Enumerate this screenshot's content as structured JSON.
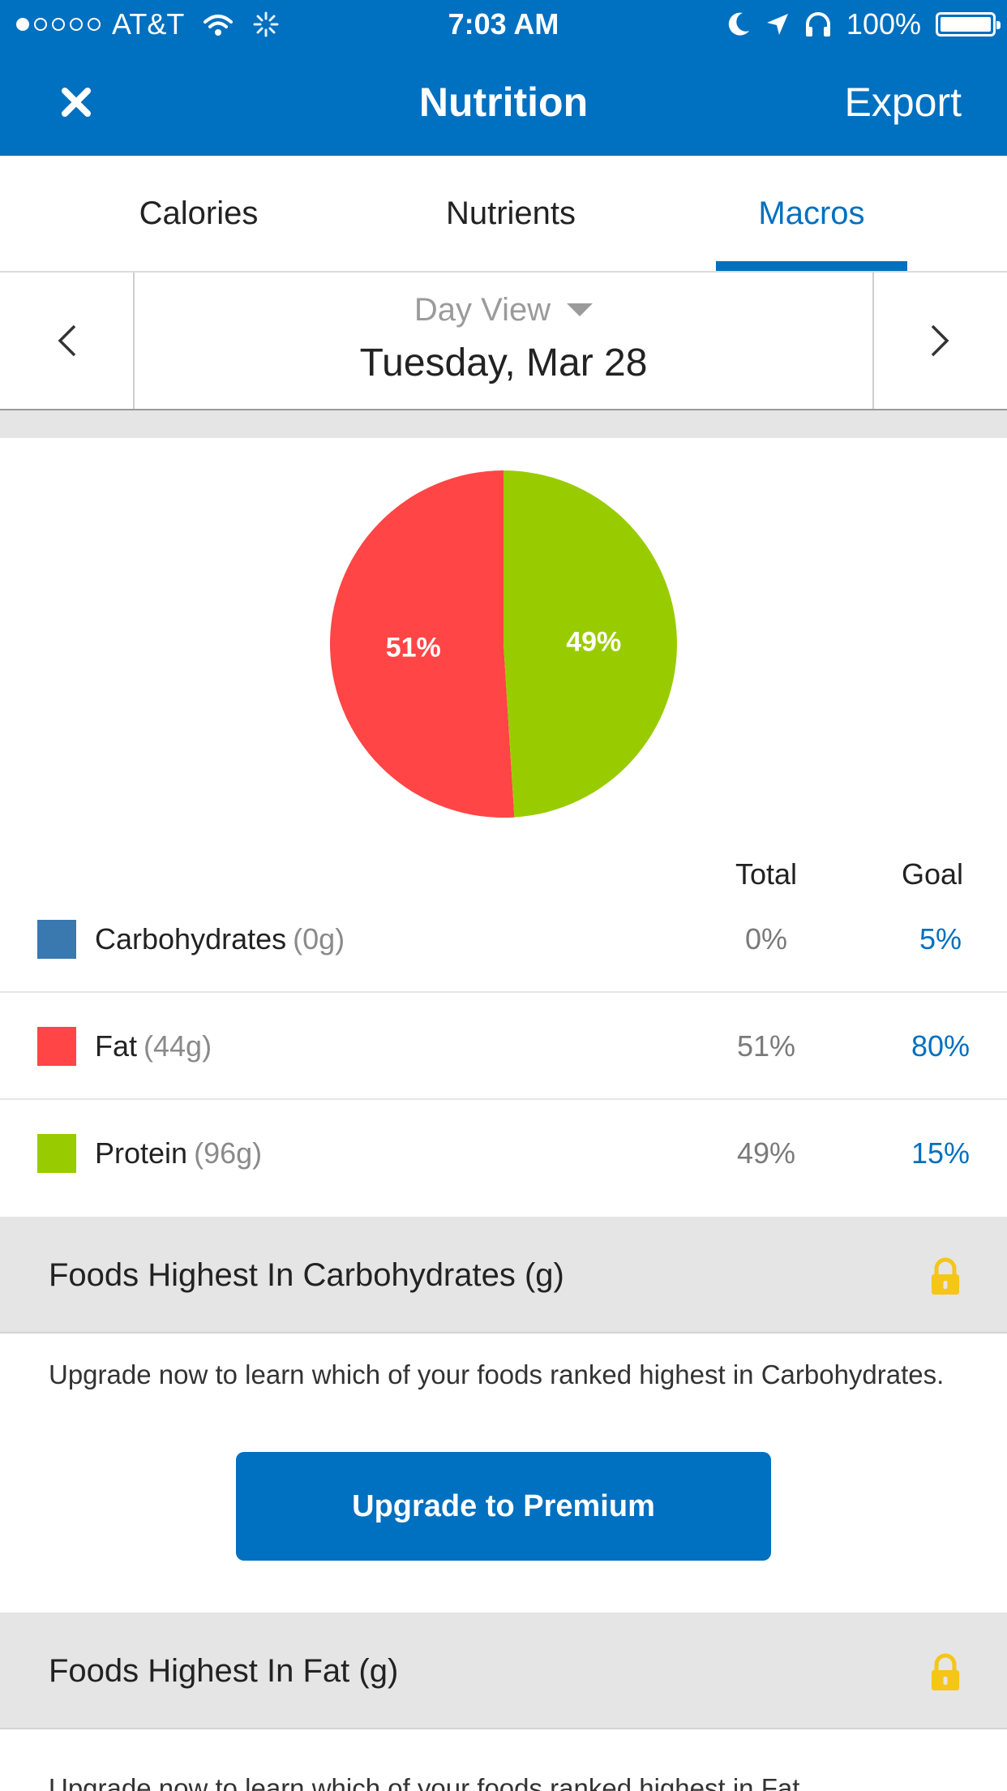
{
  "status_bar": {
    "carrier": "AT&T",
    "time": "7:03 AM",
    "battery": "100%",
    "signal_dots_filled": 1,
    "signal_dots_total": 5
  },
  "nav": {
    "close_icon": "close-x-icon",
    "title": "Nutrition",
    "export_label": "Export"
  },
  "tabs": [
    {
      "label": "Calories"
    },
    {
      "label": "Nutrients"
    },
    {
      "label": "Macros",
      "active": true
    }
  ],
  "date": {
    "view_label": "Day View",
    "date_text": "Tuesday, Mar 28"
  },
  "chart_data": {
    "type": "pie",
    "slices": [
      {
        "label": "Carbohydrates",
        "value": 0,
        "color": "#3A78B0"
      },
      {
        "label": "Fat",
        "value": 51,
        "color": "#FF4545"
      },
      {
        "label": "Protein",
        "value": 49,
        "color": "#99CC00"
      }
    ],
    "data_labels": [
      "51%",
      "49%"
    ]
  },
  "macros": {
    "total_header": "Total",
    "goal_header": "Goal",
    "rows": [
      {
        "name": "Carbohydrates",
        "grams": "(0g)",
        "total": "0%",
        "goal": "5%",
        "color": "#3A78B0"
      },
      {
        "name": "Fat",
        "grams": "(44g)",
        "total": "51%",
        "goal": "80%",
        "color": "#FF4545"
      },
      {
        "name": "Protein",
        "grams": "(96g)",
        "total": "49%",
        "goal": "15%",
        "color": "#99CC00"
      }
    ]
  },
  "sections": [
    {
      "title": "Foods Highest In Carbohydrates (g)",
      "text": "Upgrade now to learn which of your foods ranked highest in Carbohydrates.",
      "button": "Upgrade to Premium"
    },
    {
      "title": "Foods Highest In Fat (g)",
      "text": "Upgrade now to learn which of your foods ranked highest in Fat."
    }
  ],
  "colors": {
    "brand_blue": "#0070C0",
    "lock_yellow": "#F5C518"
  }
}
